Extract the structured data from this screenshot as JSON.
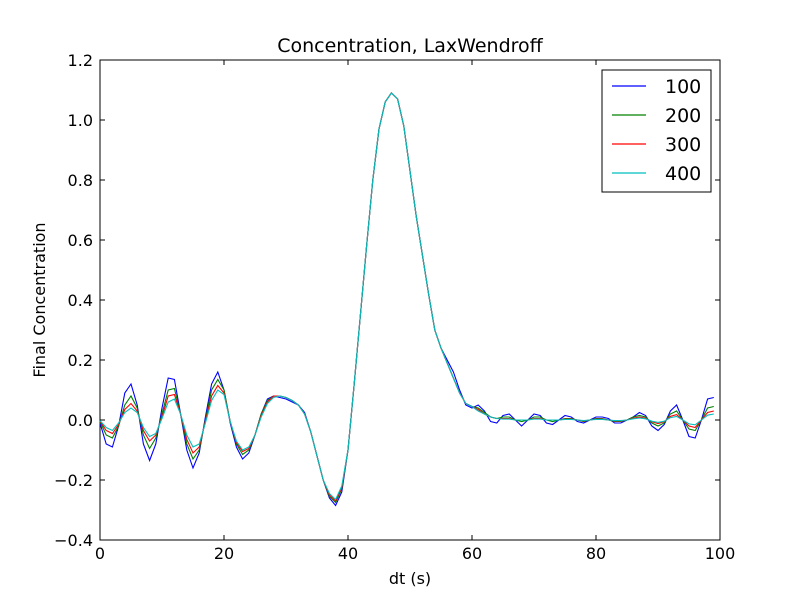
{
  "chart_data": {
    "type": "line",
    "title": "Concentration, LaxWendroff",
    "xlabel": "dt (s)",
    "ylabel": "Final Concentration",
    "xlim": [
      0,
      100
    ],
    "ylim": [
      -0.4,
      1.2
    ],
    "x_ticks": [
      0,
      20,
      40,
      60,
      80,
      100
    ],
    "y_ticks": [
      -0.4,
      -0.2,
      0.0,
      0.2,
      0.4,
      0.6,
      0.8,
      1.0,
      1.2
    ],
    "x_tick_labels": [
      "0",
      "20",
      "40",
      "60",
      "80",
      "100"
    ],
    "y_tick_labels": [
      "−0.4",
      "−0.2",
      "0.0",
      "0.2",
      "0.4",
      "0.6",
      "0.8",
      "1.0",
      "1.2"
    ],
    "grid": false,
    "legend_position": "top-right",
    "series": [
      {
        "name": "100",
        "color": "#0000ff",
        "x": [
          0,
          1,
          2,
          3,
          4,
          5,
          6,
          7,
          8,
          9,
          10,
          11,
          12,
          13,
          14,
          15,
          16,
          17,
          18,
          19,
          20,
          21,
          22,
          23,
          24,
          25,
          26,
          27,
          28,
          29,
          30,
          31,
          32,
          33,
          34,
          35,
          36,
          37,
          38,
          39,
          40,
          41,
          42,
          43,
          44,
          45,
          46,
          47,
          48,
          49,
          50,
          51,
          52,
          53,
          54,
          55,
          56,
          57,
          58,
          59,
          60,
          61,
          62,
          63,
          64,
          65,
          66,
          67,
          68,
          69,
          70,
          71,
          72,
          73,
          74,
          75,
          76,
          77,
          78,
          79,
          80,
          81,
          82,
          83,
          84,
          85,
          86,
          87,
          88,
          89,
          90,
          91,
          92,
          93,
          94,
          95,
          96,
          97,
          98,
          99
        ],
        "y": [
          -0.01,
          -0.08,
          -0.09,
          -0.02,
          0.09,
          0.12,
          0.05,
          -0.08,
          -0.135,
          -0.08,
          0.04,
          0.14,
          0.135,
          0.02,
          -0.1,
          -0.16,
          -0.11,
          0.01,
          0.12,
          0.16,
          0.1,
          -0.01,
          -0.09,
          -0.13,
          -0.11,
          -0.05,
          0.02,
          0.07,
          0.08,
          0.075,
          0.07,
          0.06,
          0.05,
          0.025,
          -0.04,
          -0.12,
          -0.2,
          -0.26,
          -0.285,
          -0.24,
          -0.1,
          0.12,
          0.35,
          0.58,
          0.8,
          0.97,
          1.06,
          1.09,
          1.07,
          0.98,
          0.83,
          0.68,
          0.55,
          0.42,
          0.3,
          0.24,
          0.2,
          0.16,
          0.1,
          0.05,
          0.04,
          0.05,
          0.03,
          -0.005,
          -0.01,
          0.015,
          0.02,
          0.0,
          -0.02,
          0.0,
          0.02,
          0.015,
          -0.01,
          -0.015,
          0.0,
          0.015,
          0.01,
          -0.005,
          -0.01,
          0.0,
          0.01,
          0.01,
          0.005,
          -0.01,
          -0.01,
          0.0,
          0.01,
          0.025,
          0.015,
          -0.02,
          -0.035,
          -0.015,
          0.03,
          0.05,
          0.0,
          -0.055,
          -0.06,
          0.0,
          0.07,
          0.075
        ]
      },
      {
        "name": "200",
        "color": "#008000",
        "x": [
          0,
          1,
          2,
          3,
          4,
          5,
          6,
          7,
          8,
          9,
          10,
          11,
          12,
          13,
          14,
          15,
          16,
          17,
          18,
          19,
          20,
          21,
          22,
          23,
          24,
          25,
          26,
          27,
          28,
          29,
          30,
          31,
          32,
          33,
          34,
          35,
          36,
          37,
          38,
          39,
          40,
          41,
          42,
          43,
          44,
          45,
          46,
          47,
          48,
          49,
          50,
          51,
          52,
          53,
          54,
          55,
          56,
          57,
          58,
          59,
          60,
          61,
          62,
          63,
          64,
          65,
          66,
          67,
          68,
          69,
          70,
          71,
          72,
          73,
          74,
          75,
          76,
          77,
          78,
          79,
          80,
          81,
          82,
          83,
          84,
          85,
          86,
          87,
          88,
          89,
          90,
          91,
          92,
          93,
          94,
          95,
          96,
          97,
          98,
          99
        ],
        "y": [
          -0.005,
          -0.05,
          -0.06,
          -0.02,
          0.05,
          0.08,
          0.04,
          -0.05,
          -0.095,
          -0.06,
          0.02,
          0.1,
          0.105,
          0.02,
          -0.08,
          -0.13,
          -0.1,
          0.0,
          0.1,
          0.135,
          0.1,
          -0.005,
          -0.08,
          -0.115,
          -0.1,
          -0.05,
          0.02,
          0.065,
          0.08,
          0.08,
          0.075,
          0.065,
          0.05,
          0.02,
          -0.04,
          -0.12,
          -0.2,
          -0.255,
          -0.275,
          -0.23,
          -0.1,
          0.12,
          0.35,
          0.58,
          0.8,
          0.97,
          1.06,
          1.09,
          1.07,
          0.98,
          0.83,
          0.68,
          0.55,
          0.42,
          0.3,
          0.24,
          0.19,
          0.14,
          0.09,
          0.055,
          0.045,
          0.04,
          0.025,
          0.01,
          0.005,
          0.01,
          0.01,
          0.0,
          -0.005,
          0.0,
          0.01,
          0.01,
          0.0,
          -0.005,
          0.0,
          0.005,
          0.005,
          0.0,
          -0.005,
          0.0,
          0.005,
          0.005,
          0.0,
          -0.005,
          -0.005,
          0.0,
          0.01,
          0.015,
          0.01,
          -0.01,
          -0.02,
          -0.01,
          0.02,
          0.03,
          0.0,
          -0.03,
          -0.035,
          0.0,
          0.04,
          0.045
        ]
      },
      {
        "name": "300",
        "color": "#ff0000",
        "x": [
          0,
          1,
          2,
          3,
          4,
          5,
          6,
          7,
          8,
          9,
          10,
          11,
          12,
          13,
          14,
          15,
          16,
          17,
          18,
          19,
          20,
          21,
          22,
          23,
          24,
          25,
          26,
          27,
          28,
          29,
          30,
          31,
          32,
          33,
          34,
          35,
          36,
          37,
          38,
          39,
          40,
          41,
          42,
          43,
          44,
          45,
          46,
          47,
          48,
          49,
          50,
          51,
          52,
          53,
          54,
          55,
          56,
          57,
          58,
          59,
          60,
          61,
          62,
          63,
          64,
          65,
          66,
          67,
          68,
          69,
          70,
          71,
          72,
          73,
          74,
          75,
          76,
          77,
          78,
          79,
          80,
          81,
          82,
          83,
          84,
          85,
          86,
          87,
          88,
          89,
          90,
          91,
          92,
          93,
          94,
          95,
          96,
          97,
          98,
          99
        ],
        "y": [
          -0.003,
          -0.035,
          -0.045,
          -0.015,
          0.035,
          0.055,
          0.03,
          -0.035,
          -0.07,
          -0.05,
          0.01,
          0.08,
          0.085,
          0.02,
          -0.065,
          -0.11,
          -0.09,
          -0.005,
          0.08,
          0.115,
          0.09,
          -0.005,
          -0.075,
          -0.105,
          -0.095,
          -0.05,
          0.015,
          0.06,
          0.08,
          0.08,
          0.075,
          0.065,
          0.05,
          0.02,
          -0.04,
          -0.12,
          -0.2,
          -0.25,
          -0.27,
          -0.225,
          -0.1,
          0.12,
          0.35,
          0.58,
          0.8,
          0.97,
          1.06,
          1.09,
          1.07,
          0.98,
          0.83,
          0.68,
          0.55,
          0.42,
          0.3,
          0.24,
          0.19,
          0.14,
          0.09,
          0.055,
          0.045,
          0.035,
          0.02,
          0.01,
          0.005,
          0.005,
          0.005,
          0.0,
          0.0,
          0.0,
          0.005,
          0.005,
          0.0,
          0.0,
          0.0,
          0.003,
          0.003,
          0.0,
          -0.003,
          0.0,
          0.003,
          0.003,
          0.0,
          -0.003,
          -0.003,
          0.0,
          0.006,
          0.01,
          0.006,
          -0.006,
          -0.012,
          -0.006,
          0.012,
          0.018,
          0.0,
          -0.02,
          -0.025,
          0.0,
          0.025,
          0.03
        ]
      },
      {
        "name": "400",
        "color": "#00bfbf",
        "x": [
          0,
          1,
          2,
          3,
          4,
          5,
          6,
          7,
          8,
          9,
          10,
          11,
          12,
          13,
          14,
          15,
          16,
          17,
          18,
          19,
          20,
          21,
          22,
          23,
          24,
          25,
          26,
          27,
          28,
          29,
          30,
          31,
          32,
          33,
          34,
          35,
          36,
          37,
          38,
          39,
          40,
          41,
          42,
          43,
          44,
          45,
          46,
          47,
          48,
          49,
          50,
          51,
          52,
          53,
          54,
          55,
          56,
          57,
          58,
          59,
          60,
          61,
          62,
          63,
          64,
          65,
          66,
          67,
          68,
          69,
          70,
          71,
          72,
          73,
          74,
          75,
          76,
          77,
          78,
          79,
          80,
          81,
          82,
          83,
          84,
          85,
          86,
          87,
          88,
          89,
          90,
          91,
          92,
          93,
          94,
          95,
          96,
          97,
          98,
          99
        ],
        "y": [
          -0.002,
          -0.025,
          -0.035,
          -0.01,
          0.025,
          0.04,
          0.025,
          -0.025,
          -0.055,
          -0.045,
          0.005,
          0.06,
          0.07,
          0.02,
          -0.05,
          -0.09,
          -0.08,
          -0.01,
          0.065,
          0.1,
          0.085,
          -0.005,
          -0.07,
          -0.1,
          -0.09,
          -0.05,
          0.01,
          0.055,
          0.075,
          0.08,
          0.075,
          0.065,
          0.05,
          0.02,
          -0.04,
          -0.12,
          -0.2,
          -0.245,
          -0.265,
          -0.22,
          -0.1,
          0.12,
          0.35,
          0.58,
          0.8,
          0.97,
          1.06,
          1.09,
          1.07,
          0.98,
          0.83,
          0.68,
          0.55,
          0.42,
          0.3,
          0.24,
          0.19,
          0.14,
          0.09,
          0.055,
          0.045,
          0.03,
          0.02,
          0.01,
          0.005,
          0.003,
          0.003,
          0.0,
          0.0,
          0.0,
          0.003,
          0.003,
          0.0,
          0.0,
          0.0,
          0.002,
          0.002,
          0.0,
          -0.002,
          0.0,
          0.002,
          0.002,
          0.0,
          -0.002,
          -0.002,
          0.0,
          0.004,
          0.007,
          0.004,
          -0.004,
          -0.008,
          -0.004,
          0.008,
          0.012,
          0.0,
          -0.013,
          -0.016,
          0.0,
          0.016,
          0.02
        ]
      }
    ]
  }
}
